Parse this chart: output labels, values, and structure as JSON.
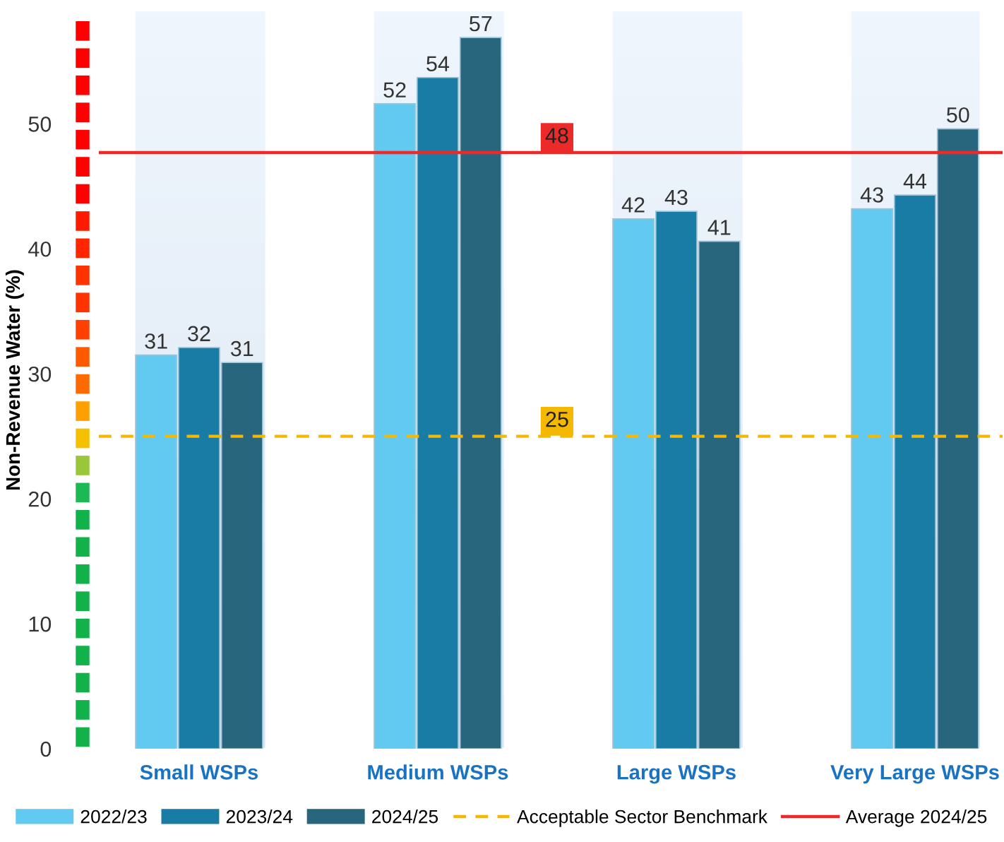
{
  "chart_data": {
    "type": "bar",
    "ylabel": "Non-Revenue Water (%)",
    "categories": [
      "Small WSPs",
      "Medium WSPs",
      "Large WSPs",
      "Very Large WSPs"
    ],
    "series": [
      {
        "name": "2022/23",
        "color": "#62c9f1",
        "values": [
          31.5,
          51.6,
          42.4,
          43.2
        ],
        "value_labels": [
          "31",
          "52",
          "42",
          "43"
        ]
      },
      {
        "name": "2023/24",
        "color": "#187ca5",
        "values": [
          32.1,
          53.7,
          43.0,
          44.3
        ],
        "value_labels": [
          "32",
          "54",
          "43",
          "44"
        ]
      },
      {
        "name": "2024/25",
        "color": "#28667e",
        "values": [
          30.9,
          56.9,
          40.6,
          49.6
        ],
        "value_labels": [
          "31",
          "57",
          "41",
          "50"
        ]
      }
    ],
    "ylim": [
      0,
      59
    ],
    "yticks": [
      0,
      10,
      20,
      30,
      40,
      50
    ],
    "grid": false,
    "legend": "bottom",
    "ref_lines": [
      {
        "axis": "y",
        "value": 25,
        "label": "Acceptable Sector Benchmark",
        "color": "#f5b800",
        "line_style": "dashed"
      },
      {
        "axis": "y",
        "value": 47.7,
        "label": "Average 2024/25",
        "color": "#ec2a2a",
        "line_style": "solid"
      }
    ],
    "annotations": [
      {
        "text": "25",
        "y": 25
      },
      {
        "text": "48",
        "y": 47.7
      }
    ]
  }
}
